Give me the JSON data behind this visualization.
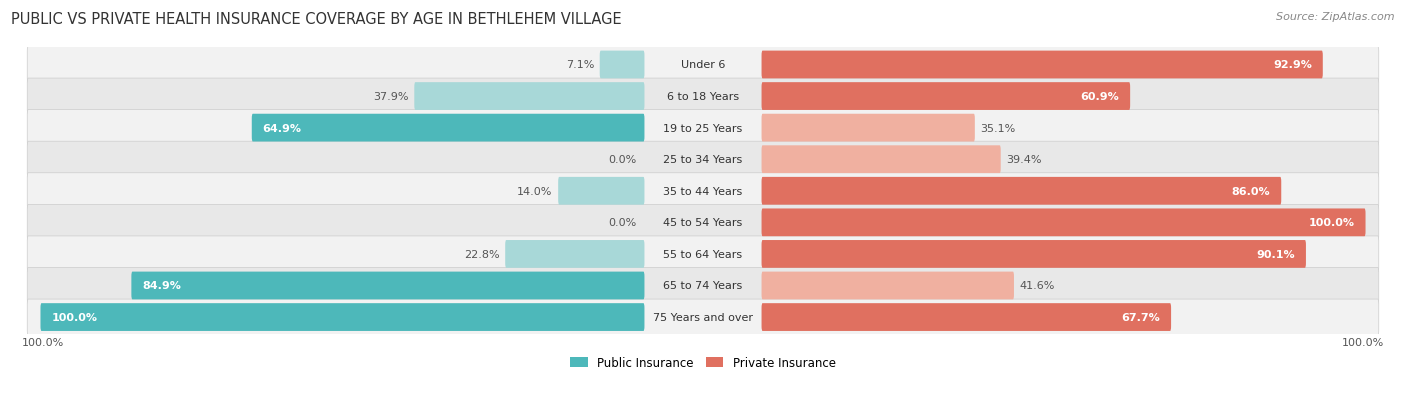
{
  "title": "PUBLIC VS PRIVATE HEALTH INSURANCE COVERAGE BY AGE IN BETHLEHEM VILLAGE",
  "source": "Source: ZipAtlas.com",
  "categories": [
    "Under 6",
    "6 to 18 Years",
    "19 to 25 Years",
    "25 to 34 Years",
    "35 to 44 Years",
    "45 to 54 Years",
    "55 to 64 Years",
    "65 to 74 Years",
    "75 Years and over"
  ],
  "public_values": [
    7.1,
    37.9,
    64.9,
    0.0,
    14.0,
    0.0,
    22.8,
    84.9,
    100.0
  ],
  "private_values": [
    92.9,
    60.9,
    35.1,
    39.4,
    86.0,
    100.0,
    90.1,
    41.6,
    67.7
  ],
  "public_color_strong": "#4db8ba",
  "public_color_light": "#a8d8d8",
  "private_color_strong": "#e07060",
  "private_color_light": "#f0b0a0",
  "row_bg_light": "#f2f2f2",
  "row_bg_dark": "#e8e8e8",
  "background_color": "#ffffff",
  "max_value": 100.0,
  "bar_height": 0.58,
  "title_fontsize": 10.5,
  "label_fontsize": 8.0,
  "source_fontsize": 8.0,
  "legend_fontsize": 8.5,
  "strong_threshold": 50.0,
  "footer_label": "100.0%"
}
